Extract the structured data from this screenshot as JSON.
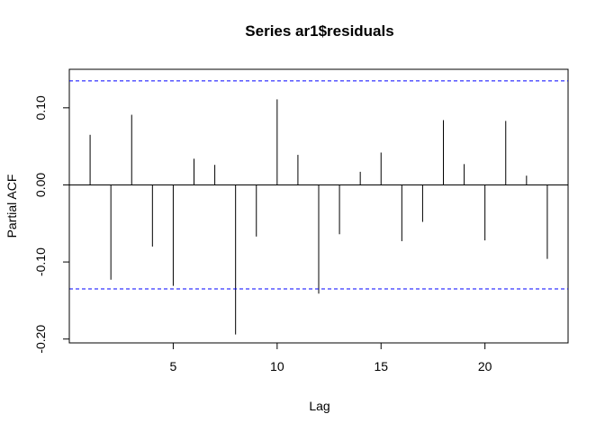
{
  "chart_data": {
    "type": "bar",
    "title": "Series  ar1$residuals",
    "xlabel": "Lag",
    "ylabel": "Partial ACF",
    "xlim": [
      0,
      24
    ],
    "ylim": [
      -0.205,
      0.15
    ],
    "x_ticks": [
      5,
      10,
      15,
      20
    ],
    "x_tick_labels": [
      "5",
      "10",
      "15",
      "20"
    ],
    "y_ticks": [
      -0.2,
      -0.1,
      0.0,
      0.1
    ],
    "y_tick_labels": [
      "-0.20",
      "-0.10",
      "0.00",
      "0.10"
    ],
    "lags": [
      1,
      2,
      3,
      4,
      5,
      6,
      7,
      8,
      9,
      10,
      11,
      12,
      13,
      14,
      15,
      16,
      17,
      18,
      19,
      20,
      21,
      22,
      23
    ],
    "values": [
      0.065,
      -0.123,
      0.091,
      -0.08,
      -0.131,
      0.034,
      0.026,
      -0.194,
      -0.067,
      0.111,
      0.039,
      -0.141,
      -0.064,
      0.017,
      0.042,
      -0.073,
      -0.048,
      0.084,
      0.027,
      -0.072,
      0.083,
      0.012,
      -0.096
    ],
    "confidence_bound": 0.135,
    "zero_line": 0.0,
    "bar_color": "#000000",
    "bound_color": "#0000ff",
    "grid": false
  }
}
